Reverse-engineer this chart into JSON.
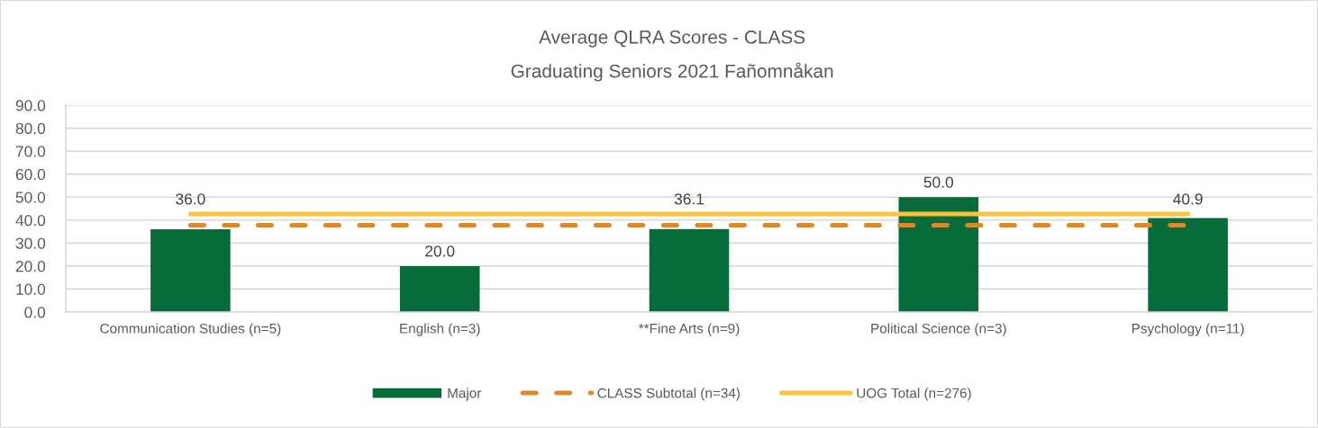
{
  "chart_data": {
    "type": "bar",
    "title": "Average QLRA Scores - CLASS",
    "subtitle": "Graduating Seniors 2021 Fañomnåkan",
    "categories": [
      "Communication Studies (n=5)",
      "English (n=3)",
      "**Fine Arts (n=9)",
      "Political Science (n=3)",
      "Psychology (n=11)"
    ],
    "series": [
      {
        "name": "Major",
        "color": "#076b3a",
        "values": [
          36.0,
          20.0,
          36.1,
          50.0,
          40.9
        ],
        "value_labels": [
          "36.0",
          "20.0",
          "36.1",
          "50.0",
          "40.9"
        ]
      },
      {
        "name": "CLASS Subtotal (n=34)",
        "type": "line",
        "color": "#d98a2f",
        "line_style": "dashed",
        "values": [
          37.8,
          37.8,
          37.8,
          37.8,
          37.8
        ]
      },
      {
        "name": "UOG Total (n=276)",
        "type": "line",
        "color": "#fec23b",
        "line_style": "solid",
        "values": [
          42.7,
          42.7,
          42.7,
          42.7,
          42.7
        ]
      }
    ],
    "ylim": [
      0,
      90
    ],
    "yticks": [
      {
        "value": 0,
        "label": "0.0"
      },
      {
        "value": 10,
        "label": "10.0"
      },
      {
        "value": 20,
        "label": "20.0"
      },
      {
        "value": 30,
        "label": "30.0"
      },
      {
        "value": 40,
        "label": "40.0"
      },
      {
        "value": 50,
        "label": "50.0"
      },
      {
        "value": 60,
        "label": "60.0"
      },
      {
        "value": 70,
        "label": "70.0"
      },
      {
        "value": 80,
        "label": "80.0"
      },
      {
        "value": 90,
        "label": "90.0"
      }
    ],
    "grid": "y",
    "legend": "bottom"
  }
}
